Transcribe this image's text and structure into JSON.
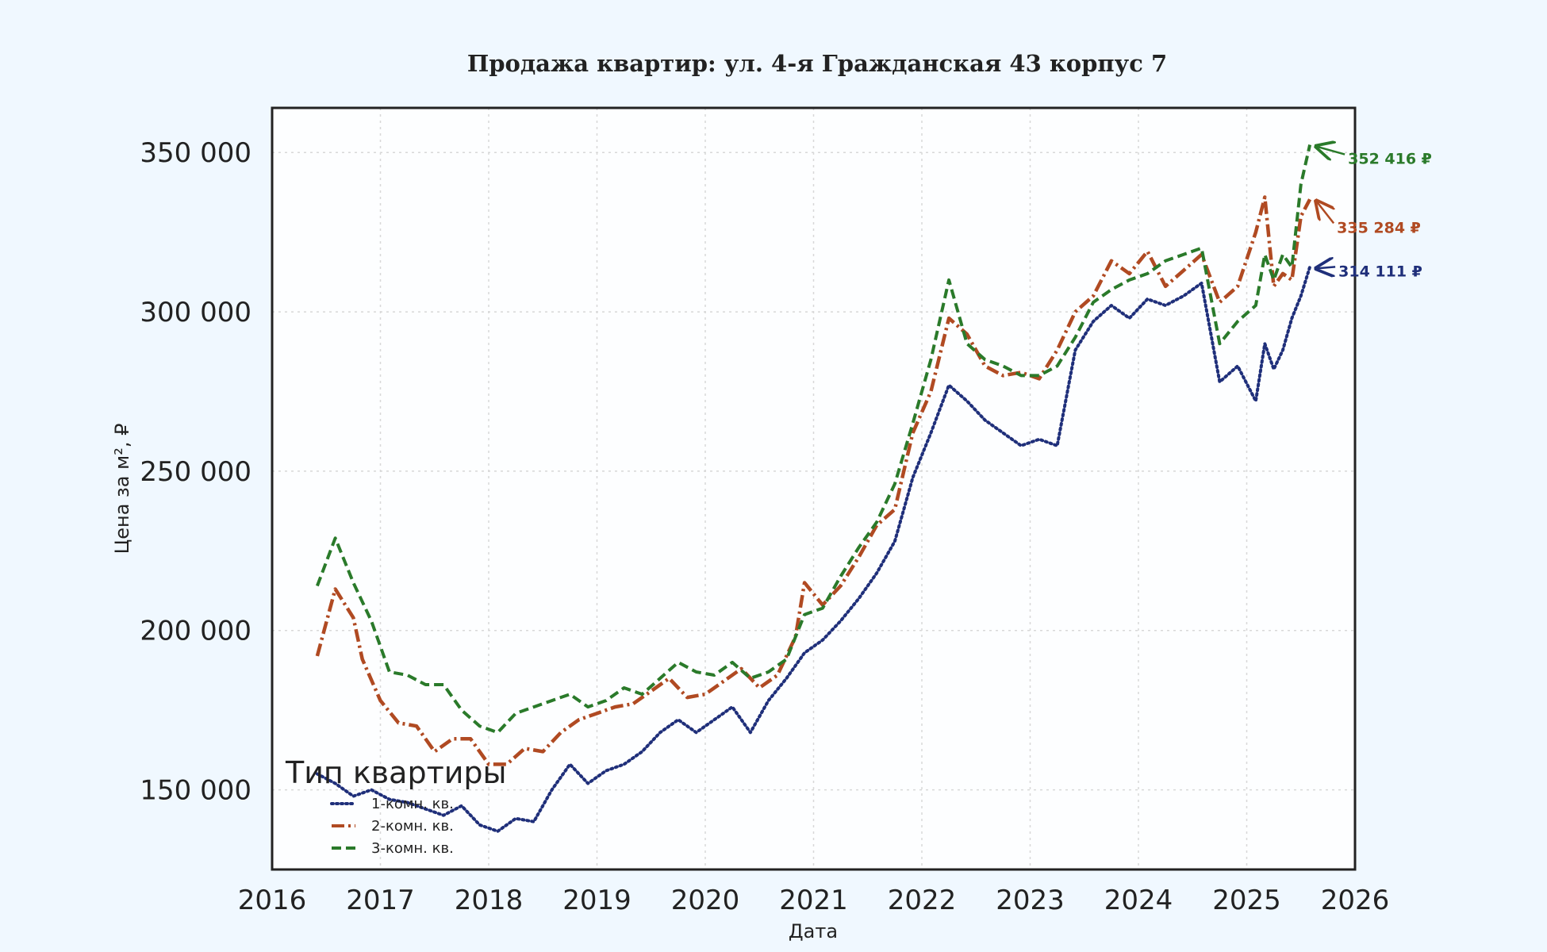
{
  "chart_data": {
    "type": "line",
    "title": "Продажа квартир: ул. 4-я Гражданская 43 корпус 7",
    "xlabel": "Дата",
    "ylabel": "Цена за м², ₽",
    "xlim": [
      "2016-01-01",
      "2026-01-01"
    ],
    "ylim": [
      125000,
      364000
    ],
    "x_ticks": [
      "2016",
      "2017",
      "2018",
      "2019",
      "2020",
      "2021",
      "2022",
      "2023",
      "2024",
      "2025",
      "2026"
    ],
    "y_ticks": [
      "150 000",
      "200 000",
      "250 000",
      "300 000",
      "350 000"
    ],
    "grid": true,
    "legend": {
      "title": "Тип квартиры",
      "position": "lower-left"
    },
    "series": [
      {
        "name": "1-комн. кв.",
        "color": "#1f2f7a",
        "style": "dotted",
        "points": [
          [
            "2016-06",
            155000
          ],
          [
            "2016-08",
            152000
          ],
          [
            "2016-10",
            148000
          ],
          [
            "2016-12",
            150000
          ],
          [
            "2017-02",
            147000
          ],
          [
            "2017-04",
            146000
          ],
          [
            "2017-06",
            144000
          ],
          [
            "2017-08",
            142000
          ],
          [
            "2017-10",
            145000
          ],
          [
            "2017-12",
            139000
          ],
          [
            "2018-02",
            137000
          ],
          [
            "2018-04",
            141000
          ],
          [
            "2018-06",
            140000
          ],
          [
            "2018-08",
            150000
          ],
          [
            "2018-10",
            158000
          ],
          [
            "2018-12",
            152000
          ],
          [
            "2019-02",
            156000
          ],
          [
            "2019-04",
            158000
          ],
          [
            "2019-06",
            162000
          ],
          [
            "2019-08",
            168000
          ],
          [
            "2019-10",
            172000
          ],
          [
            "2019-12",
            168000
          ],
          [
            "2020-02",
            172000
          ],
          [
            "2020-04",
            176000
          ],
          [
            "2020-06",
            168000
          ],
          [
            "2020-08",
            178000
          ],
          [
            "2020-10",
            185000
          ],
          [
            "2020-12",
            193000
          ],
          [
            "2021-02",
            197000
          ],
          [
            "2021-04",
            203000
          ],
          [
            "2021-06",
            210000
          ],
          [
            "2021-08",
            218000
          ],
          [
            "2021-10",
            228000
          ],
          [
            "2021-12",
            248000
          ],
          [
            "2022-02",
            262000
          ],
          [
            "2022-04",
            277000
          ],
          [
            "2022-06",
            272000
          ],
          [
            "2022-08",
            266000
          ],
          [
            "2022-10",
            262000
          ],
          [
            "2022-12",
            258000
          ],
          [
            "2023-02",
            260000
          ],
          [
            "2023-04",
            258000
          ],
          [
            "2023-06",
            288000
          ],
          [
            "2023-08",
            297000
          ],
          [
            "2023-10",
            302000
          ],
          [
            "2023-12",
            298000
          ],
          [
            "2024-02",
            304000
          ],
          [
            "2024-04",
            302000
          ],
          [
            "2024-06",
            305000
          ],
          [
            "2024-08",
            309000
          ],
          [
            "2024-10",
            278000
          ],
          [
            "2024-12",
            283000
          ],
          [
            "2025-02",
            272000
          ],
          [
            "2025-03",
            290000
          ],
          [
            "2025-04",
            282000
          ],
          [
            "2025-05",
            288000
          ],
          [
            "2025-06",
            298000
          ],
          [
            "2025-07",
            305000
          ],
          [
            "2025-08",
            314111
          ]
        ]
      },
      {
        "name": "2-комн. кв.",
        "color": "#b04a22",
        "style": "dashdot",
        "points": [
          [
            "2016-06",
            192000
          ],
          [
            "2016-08",
            213000
          ],
          [
            "2016-10",
            204000
          ],
          [
            "2016-11",
            191000
          ],
          [
            "2017-01",
            178000
          ],
          [
            "2017-03",
            171000
          ],
          [
            "2017-05",
            170000
          ],
          [
            "2017-07",
            162000
          ],
          [
            "2017-09",
            166000
          ],
          [
            "2017-11",
            166000
          ],
          [
            "2018-01",
            158000
          ],
          [
            "2018-03",
            158000
          ],
          [
            "2018-05",
            163000
          ],
          [
            "2018-07",
            162000
          ],
          [
            "2018-09",
            168000
          ],
          [
            "2018-11",
            172000
          ],
          [
            "2019-01",
            174000
          ],
          [
            "2019-03",
            176000
          ],
          [
            "2019-05",
            177000
          ],
          [
            "2019-07",
            181000
          ],
          [
            "2019-09",
            185000
          ],
          [
            "2019-11",
            179000
          ],
          [
            "2020-01",
            180000
          ],
          [
            "2020-03",
            184000
          ],
          [
            "2020-05",
            188000
          ],
          [
            "2020-07",
            182000
          ],
          [
            "2020-09",
            186000
          ],
          [
            "2020-11",
            198000
          ],
          [
            "2020-12",
            215000
          ],
          [
            "2021-02",
            208000
          ],
          [
            "2021-04",
            214000
          ],
          [
            "2021-06",
            223000
          ],
          [
            "2021-08",
            233000
          ],
          [
            "2021-10",
            238000
          ],
          [
            "2021-12",
            262000
          ],
          [
            "2022-02",
            275000
          ],
          [
            "2022-04",
            298000
          ],
          [
            "2022-06",
            293000
          ],
          [
            "2022-08",
            283000
          ],
          [
            "2022-10",
            280000
          ],
          [
            "2022-12",
            281000
          ],
          [
            "2023-02",
            279000
          ],
          [
            "2023-04",
            288000
          ],
          [
            "2023-06",
            300000
          ],
          [
            "2023-08",
            305000
          ],
          [
            "2023-10",
            316000
          ],
          [
            "2023-12",
            312000
          ],
          [
            "2024-02",
            319000
          ],
          [
            "2024-04",
            308000
          ],
          [
            "2024-06",
            313000
          ],
          [
            "2024-08",
            318000
          ],
          [
            "2024-10",
            303000
          ],
          [
            "2024-12",
            308000
          ],
          [
            "2025-02",
            325000
          ],
          [
            "2025-03",
            336000
          ],
          [
            "2025-04",
            308000
          ],
          [
            "2025-05",
            312000
          ],
          [
            "2025-06",
            310000
          ],
          [
            "2025-07",
            330000
          ],
          [
            "2025-08",
            335284
          ]
        ]
      },
      {
        "name": "3-комн. кв.",
        "color": "#2a7a2a",
        "style": "dashed",
        "points": [
          [
            "2016-06",
            214000
          ],
          [
            "2016-08",
            229000
          ],
          [
            "2016-10",
            215000
          ],
          [
            "2016-12",
            203000
          ],
          [
            "2017-02",
            187000
          ],
          [
            "2017-04",
            186000
          ],
          [
            "2017-06",
            183000
          ],
          [
            "2017-08",
            183000
          ],
          [
            "2017-10",
            175000
          ],
          [
            "2017-12",
            170000
          ],
          [
            "2018-02",
            168000
          ],
          [
            "2018-04",
            174000
          ],
          [
            "2018-06",
            176000
          ],
          [
            "2018-08",
            178000
          ],
          [
            "2018-10",
            180000
          ],
          [
            "2018-12",
            176000
          ],
          [
            "2019-02",
            178000
          ],
          [
            "2019-04",
            182000
          ],
          [
            "2019-06",
            180000
          ],
          [
            "2019-08",
            185000
          ],
          [
            "2019-10",
            190000
          ],
          [
            "2019-12",
            187000
          ],
          [
            "2020-02",
            186000
          ],
          [
            "2020-04",
            190000
          ],
          [
            "2020-06",
            185000
          ],
          [
            "2020-08",
            187000
          ],
          [
            "2020-10",
            191000
          ],
          [
            "2020-12",
            205000
          ],
          [
            "2021-02",
            207000
          ],
          [
            "2021-04",
            217000
          ],
          [
            "2021-06",
            226000
          ],
          [
            "2021-08",
            234000
          ],
          [
            "2021-10",
            246000
          ],
          [
            "2021-12",
            265000
          ],
          [
            "2022-02",
            285000
          ],
          [
            "2022-04",
            310000
          ],
          [
            "2022-06",
            290000
          ],
          [
            "2022-08",
            285000
          ],
          [
            "2022-10",
            283000
          ],
          [
            "2022-12",
            280000
          ],
          [
            "2023-02",
            280000
          ],
          [
            "2023-04",
            283000
          ],
          [
            "2023-06",
            292000
          ],
          [
            "2023-08",
            303000
          ],
          [
            "2023-10",
            307000
          ],
          [
            "2023-12",
            310000
          ],
          [
            "2024-02",
            312000
          ],
          [
            "2024-04",
            316000
          ],
          [
            "2024-06",
            318000
          ],
          [
            "2024-08",
            320000
          ],
          [
            "2024-10",
            290000
          ],
          [
            "2024-12",
            297000
          ],
          [
            "2025-02",
            302000
          ],
          [
            "2025-03",
            318000
          ],
          [
            "2025-04",
            310000
          ],
          [
            "2025-05",
            318000
          ],
          [
            "2025-06",
            314000
          ],
          [
            "2025-07",
            340000
          ],
          [
            "2025-08",
            352416
          ]
        ]
      }
    ],
    "annotations": [
      {
        "series": "3-комн. кв.",
        "text": "352 416 ₽",
        "x": "2025-08",
        "y": 352416,
        "color": "#2a7a2a"
      },
      {
        "series": "2-комн. кв.",
        "text": "335 284 ₽",
        "x": "2025-08",
        "y": 335284,
        "color": "#b04a22"
      },
      {
        "series": "1-комн. кв.",
        "text": "314 111 ₽",
        "x": "2025-08",
        "y": 314111,
        "color": "#1f2f7a"
      }
    ]
  }
}
